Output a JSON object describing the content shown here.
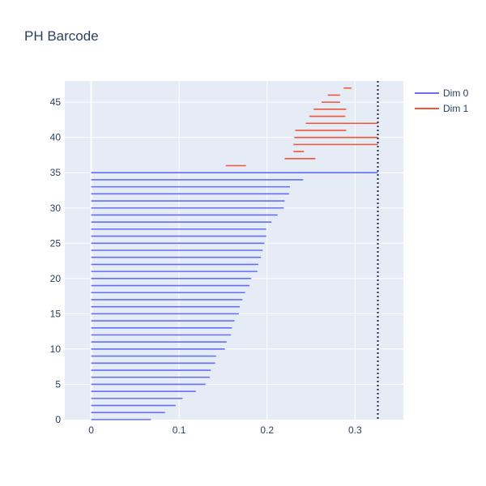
{
  "chart_data": {
    "type": "barcode",
    "title": "PH Barcode",
    "xlabel": "",
    "ylabel": "",
    "xlim": [
      -0.03,
      0.355
    ],
    "ylim": [
      0,
      48
    ],
    "x_ticks": [
      0,
      0.1,
      0.2,
      0.3
    ],
    "x_tick_labels": [
      "0",
      "0.1",
      "0.2",
      "0.3"
    ],
    "y_ticks": [
      0,
      5,
      10,
      15,
      20,
      25,
      30,
      35,
      40,
      45
    ],
    "y_tick_labels": [
      "0",
      "5",
      "10",
      "15",
      "20",
      "25",
      "30",
      "35",
      "40",
      "45"
    ],
    "threshold_line": {
      "x": 0.326,
      "style": "dotted",
      "color": "#1f2a44"
    },
    "legend_position": "top-right",
    "grid": true,
    "series": [
      {
        "name": "Dim 0",
        "color": "#636efa",
        "bars": [
          {
            "y": 0,
            "start": 0,
            "end": 0.068
          },
          {
            "y": 1,
            "start": 0,
            "end": 0.084
          },
          {
            "y": 2,
            "start": 0,
            "end": 0.096
          },
          {
            "y": 3,
            "start": 0,
            "end": 0.104
          },
          {
            "y": 4,
            "start": 0,
            "end": 0.119
          },
          {
            "y": 5,
            "start": 0,
            "end": 0.13
          },
          {
            "y": 6,
            "start": 0,
            "end": 0.135
          },
          {
            "y": 7,
            "start": 0,
            "end": 0.136
          },
          {
            "y": 8,
            "start": 0,
            "end": 0.141
          },
          {
            "y": 9,
            "start": 0,
            "end": 0.142
          },
          {
            "y": 10,
            "start": 0,
            "end": 0.152
          },
          {
            "y": 11,
            "start": 0,
            "end": 0.154
          },
          {
            "y": 12,
            "start": 0,
            "end": 0.159
          },
          {
            "y": 13,
            "start": 0,
            "end": 0.16
          },
          {
            "y": 14,
            "start": 0,
            "end": 0.163
          },
          {
            "y": 15,
            "start": 0,
            "end": 0.168
          },
          {
            "y": 16,
            "start": 0,
            "end": 0.169
          },
          {
            "y": 17,
            "start": 0,
            "end": 0.172
          },
          {
            "y": 18,
            "start": 0,
            "end": 0.175
          },
          {
            "y": 19,
            "start": 0,
            "end": 0.18
          },
          {
            "y": 20,
            "start": 0,
            "end": 0.182
          },
          {
            "y": 21,
            "start": 0,
            "end": 0.189
          },
          {
            "y": 22,
            "start": 0,
            "end": 0.19
          },
          {
            "y": 23,
            "start": 0,
            "end": 0.193
          },
          {
            "y": 24,
            "start": 0,
            "end": 0.195
          },
          {
            "y": 25,
            "start": 0,
            "end": 0.197
          },
          {
            "y": 26,
            "start": 0,
            "end": 0.199
          },
          {
            "y": 27,
            "start": 0,
            "end": 0.199
          },
          {
            "y": 28,
            "start": 0,
            "end": 0.205
          },
          {
            "y": 29,
            "start": 0,
            "end": 0.212
          },
          {
            "y": 30,
            "start": 0,
            "end": 0.219
          },
          {
            "y": 31,
            "start": 0,
            "end": 0.22
          },
          {
            "y": 32,
            "start": 0,
            "end": 0.225
          },
          {
            "y": 33,
            "start": 0,
            "end": 0.226
          },
          {
            "y": 34,
            "start": 0,
            "end": 0.241
          },
          {
            "y": 35,
            "start": 0,
            "end": 0.326
          }
        ]
      },
      {
        "name": "Dim 1",
        "color": "#ef553b",
        "bars": [
          {
            "y": 36,
            "start": 0.153,
            "end": 0.176
          },
          {
            "y": 37,
            "start": 0.22,
            "end": 0.255
          },
          {
            "y": 38,
            "start": 0.23,
            "end": 0.242
          },
          {
            "y": 39,
            "start": 0.23,
            "end": 0.326
          },
          {
            "y": 40,
            "start": 0.231,
            "end": 0.326
          },
          {
            "y": 41,
            "start": 0.232,
            "end": 0.29
          },
          {
            "y": 42,
            "start": 0.244,
            "end": 0.326
          },
          {
            "y": 43,
            "start": 0.248,
            "end": 0.289
          },
          {
            "y": 44,
            "start": 0.253,
            "end": 0.29
          },
          {
            "y": 45,
            "start": 0.262,
            "end": 0.283
          },
          {
            "y": 46,
            "start": 0.269,
            "end": 0.283
          },
          {
            "y": 47,
            "start": 0.287,
            "end": 0.296
          }
        ]
      }
    ]
  }
}
